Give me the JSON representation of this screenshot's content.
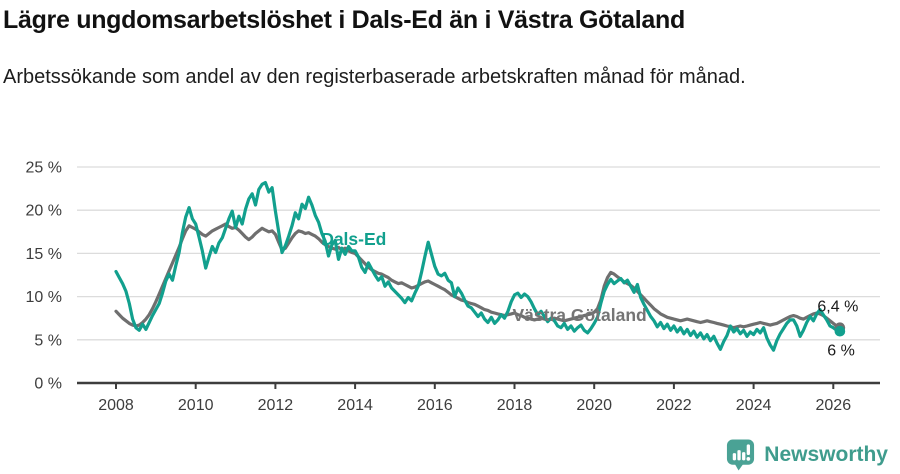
{
  "header": {
    "title": "Lägre ungdomsarbetslöshet i Dals-Ed än i Västra Götaland",
    "subtitle": "Arbetssökande som andel av den registerbaserade arbetskraften månad för månad."
  },
  "footer": {
    "brand": "Newsworthy",
    "logo_icon": "bar-chart-speech-bubble",
    "brand_color": "#3f9c8d"
  },
  "chart_data": {
    "type": "line",
    "title": "Lägre ungdomsarbetslöshet i Dals-Ed än i Västra Götaland",
    "subtitle": "Arbetssökande som andel av den registerbaserade arbetskraften månad för månad.",
    "x_unit": "month",
    "x_start": "2008-01",
    "x_end": "2026-03",
    "ylim": [
      0,
      25
    ],
    "grid": "horizontal",
    "ytick_values": [
      0,
      5,
      10,
      15,
      20,
      25
    ],
    "ytick_labels": [
      "0 %",
      "5 %",
      "10 %",
      "15 %",
      "20 %",
      "25 %"
    ],
    "xtick_years": [
      2008,
      2010,
      2012,
      2014,
      2016,
      2018,
      2020,
      2022,
      2024,
      2026
    ],
    "series": [
      {
        "name": "Dals-Ed",
        "color": "#12a08e",
        "label_color": "#12a08e",
        "name_pos": {
          "t": 2013.15,
          "v": 16.0
        },
        "end_value": 6.0,
        "end_label": "6 %",
        "end_label_pos": {
          "t": 2025.85,
          "v": 3.2
        },
        "values": [
          12.9,
          12.2,
          11.5,
          10.6,
          9.2,
          7.4,
          6.4,
          6.1,
          6.8,
          6.2,
          7.0,
          7.8,
          8.5,
          9.2,
          10.4,
          11.8,
          12.6,
          11.9,
          13.6,
          15.1,
          17.4,
          19.2,
          20.3,
          19.0,
          18.4,
          16.9,
          15.3,
          13.3,
          14.6,
          15.8,
          15.1,
          16.2,
          16.8,
          17.9,
          19.0,
          19.9,
          18.0,
          19.3,
          18.4,
          20.1,
          21.3,
          21.9,
          20.6,
          22.4,
          23.0,
          23.2,
          22.1,
          22.6,
          19.9,
          17.5,
          15.1,
          15.9,
          17.0,
          18.2,
          19.7,
          19.0,
          20.7,
          20.2,
          21.5,
          20.6,
          19.4,
          18.6,
          17.3,
          16.4,
          14.7,
          16.0,
          16.5,
          14.3,
          15.6,
          14.9,
          15.8,
          15.3,
          15.3,
          14.6,
          13.4,
          12.8,
          13.9,
          13.2,
          12.5,
          11.9,
          12.3,
          11.2,
          11.7,
          11.0,
          10.6,
          10.2,
          9.8,
          9.3,
          9.9,
          9.5,
          10.4,
          11.2,
          12.8,
          14.6,
          16.3,
          14.9,
          13.5,
          12.6,
          12.4,
          12.7,
          11.9,
          11.6,
          10.0,
          11.0,
          10.4,
          9.6,
          8.9,
          8.7,
          8.2,
          7.7,
          8.1,
          7.4,
          7.0,
          7.6,
          6.9,
          7.3,
          7.9,
          7.5,
          8.3,
          9.4,
          10.2,
          10.4,
          9.9,
          10.3,
          10.0,
          9.4,
          8.6,
          7.9,
          8.3,
          7.7,
          7.1,
          7.5,
          7.2,
          6.6,
          6.4,
          6.9,
          6.2,
          6.6,
          6.0,
          6.4,
          6.7,
          6.1,
          5.8,
          6.3,
          6.9,
          7.6,
          9.2,
          10.6,
          11.4,
          12.0,
          11.5,
          11.8,
          12.1,
          11.6,
          11.9,
          11.2,
          10.5,
          11.4,
          9.9,
          9.1,
          8.4,
          7.7,
          7.2,
          6.5,
          7.0,
          6.3,
          6.8,
          6.1,
          6.6,
          5.9,
          6.4,
          5.7,
          6.2,
          5.5,
          6.0,
          5.3,
          5.8,
          5.1,
          5.6,
          4.9,
          5.4,
          4.6,
          3.9,
          4.8,
          5.5,
          6.6,
          5.9,
          6.3,
          5.7,
          6.1,
          5.4,
          5.9,
          5.6,
          6.2,
          5.8,
          6.4,
          5.2,
          4.4,
          3.8,
          4.9,
          5.7,
          6.3,
          6.9,
          7.3,
          7.3,
          6.6,
          5.4,
          6.1,
          7.0,
          7.7,
          7.2,
          8.0,
          8.5,
          7.9,
          7.3,
          6.6,
          6.4,
          6.1,
          6.0
        ]
      },
      {
        "name": "Västra Götaland",
        "color": "#6f6f6f",
        "label_color": "#757575",
        "name_pos": {
          "t": 2017.95,
          "v": 7.2
        },
        "end_value": 6.4,
        "end_label": "6,4 %",
        "end_label_pos": {
          "t": 2025.6,
          "v": 8.3
        },
        "values": [
          8.3,
          7.9,
          7.5,
          7.2,
          6.9,
          6.7,
          6.6,
          6.7,
          7.0,
          7.4,
          7.9,
          8.6,
          9.4,
          10.3,
          11.2,
          12.1,
          13.0,
          13.9,
          14.8,
          15.7,
          16.7,
          17.6,
          18.2,
          18.0,
          17.8,
          17.5,
          17.2,
          17.0,
          17.3,
          17.6,
          17.8,
          18.0,
          18.2,
          18.4,
          18.1,
          17.9,
          18.0,
          17.7,
          17.3,
          16.9,
          16.6,
          16.9,
          17.3,
          17.6,
          17.9,
          17.7,
          17.5,
          17.6,
          17.2,
          16.3,
          15.4,
          15.6,
          16.2,
          16.8,
          17.3,
          17.6,
          17.5,
          17.3,
          17.4,
          17.2,
          17.0,
          16.7,
          16.3,
          16.0,
          15.8,
          15.6,
          15.5,
          15.7,
          15.4,
          15.6,
          15.3,
          15.1,
          15.0,
          14.6,
          14.2,
          13.8,
          13.4,
          13.1,
          12.9,
          12.7,
          12.6,
          12.4,
          12.2,
          11.9,
          11.7,
          11.5,
          11.6,
          11.4,
          11.2,
          11.0,
          11.1,
          11.3,
          11.5,
          11.7,
          11.8,
          11.6,
          11.4,
          11.2,
          11.0,
          10.8,
          10.5,
          10.2,
          10.0,
          9.8,
          9.6,
          9.5,
          9.3,
          9.2,
          9.1,
          8.9,
          8.7,
          8.5,
          8.4,
          8.2,
          8.1,
          8.0,
          7.9,
          7.8,
          7.9,
          8.0,
          8.1,
          7.9,
          7.8,
          7.6,
          7.5,
          7.4,
          7.3,
          7.4,
          7.5,
          7.4,
          7.3,
          7.4,
          7.5,
          7.4,
          7.3,
          7.2,
          7.3,
          7.4,
          7.5,
          7.6,
          7.7,
          7.8,
          7.9,
          8.0,
          8.2,
          8.6,
          9.6,
          11.2,
          12.2,
          12.8,
          12.6,
          12.3,
          12.0,
          11.7,
          11.5,
          11.3,
          11.0,
          10.6,
          10.2,
          9.8,
          9.4,
          9.0,
          8.6,
          8.3,
          8.0,
          7.8,
          7.6,
          7.5,
          7.4,
          7.3,
          7.2,
          7.3,
          7.4,
          7.3,
          7.2,
          7.1,
          7.0,
          7.1,
          7.2,
          7.1,
          7.0,
          6.9,
          6.8,
          6.7,
          6.6,
          6.5,
          6.4,
          6.5,
          6.6,
          6.5,
          6.6,
          6.7,
          6.8,
          6.9,
          7.0,
          6.9,
          6.8,
          6.7,
          6.8,
          6.9,
          7.1,
          7.3,
          7.5,
          7.7,
          7.8,
          7.7,
          7.5,
          7.4,
          7.6,
          7.8,
          8.0,
          8.1,
          8.0,
          7.8,
          7.5,
          7.2,
          6.9,
          6.6,
          6.4
        ]
      }
    ]
  }
}
